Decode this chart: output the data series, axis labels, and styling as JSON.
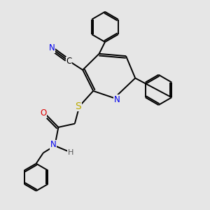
{
  "bg_color": "#e6e6e6",
  "atom_colors": {
    "C": "#000000",
    "N": "#0000ee",
    "O": "#dd0000",
    "S": "#bbaa00",
    "H": "#555555"
  },
  "bond_color": "#000000",
  "bond_width": 1.4,
  "font_size": 8.5,
  "fig_size": [
    3.0,
    3.0
  ],
  "dpi": 100
}
